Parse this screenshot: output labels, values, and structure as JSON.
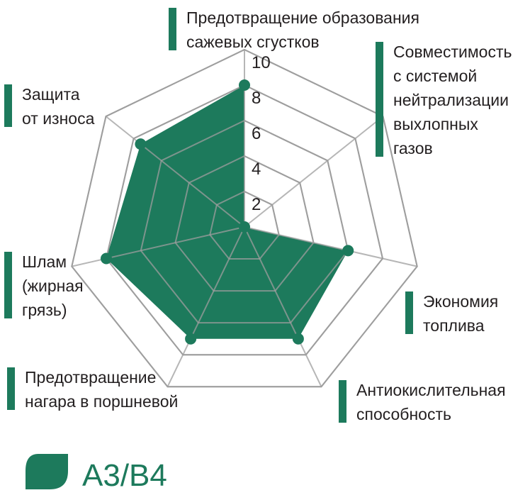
{
  "chart_data": {
    "type": "radar",
    "axes": [
      [
        "Предотвращение образования",
        "сажевых сгустков"
      ],
      [
        "Совместимость",
        "с системой",
        "нейтрализации",
        "выхлопных",
        "газов"
      ],
      [
        "Экономия",
        "топлива"
      ],
      [
        "Антиокислительная",
        "способность"
      ],
      [
        "Предотвращение",
        "нагара в поршневой"
      ],
      [
        "Шлам",
        "(жирная",
        "грязь)"
      ],
      [
        "Защита",
        "от износа"
      ]
    ],
    "series": [
      {
        "name": "A3/B4",
        "values": [
          8,
          0,
          6,
          7,
          7,
          8,
          7.5
        ]
      }
    ],
    "rlim": [
      0,
      10
    ],
    "ticks": [
      "2",
      "4",
      "6",
      "8",
      "10"
    ],
    "colors": {
      "fill": "#1d7a5c",
      "grid": "#9e9e9e",
      "bar": "#1d7a5c",
      "text": "#231f20"
    }
  }
}
